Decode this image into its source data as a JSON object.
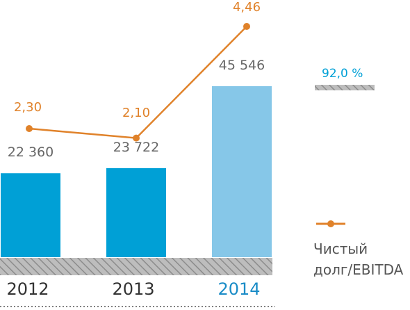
{
  "chart_data": {
    "type": "bar",
    "categories": [
      "2012",
      "2013",
      "2014"
    ],
    "bar_series": {
      "values": [
        22360,
        23722,
        45546
      ],
      "value_labels": [
        "22 360",
        "23 722",
        "45 546"
      ],
      "colors": [
        "#00a0d6",
        "#00a0d6",
        "#86c7e8"
      ]
    },
    "line_series": {
      "name": "Чистый долг/EBITDA",
      "values": [
        2.3,
        2.1,
        4.46
      ],
      "value_labels": [
        "2,30",
        "2,10",
        "4,46"
      ],
      "color": "#e0822a"
    },
    "highlight_category_color": "#1a8cc7",
    "category_color": "#333333",
    "value_label_color": "#666666"
  },
  "side": {
    "percent_label": "92,0 %",
    "percent_color": "#00a0d6",
    "legend_line1": "Чистый",
    "legend_line2": "долг/EBITDA"
  }
}
